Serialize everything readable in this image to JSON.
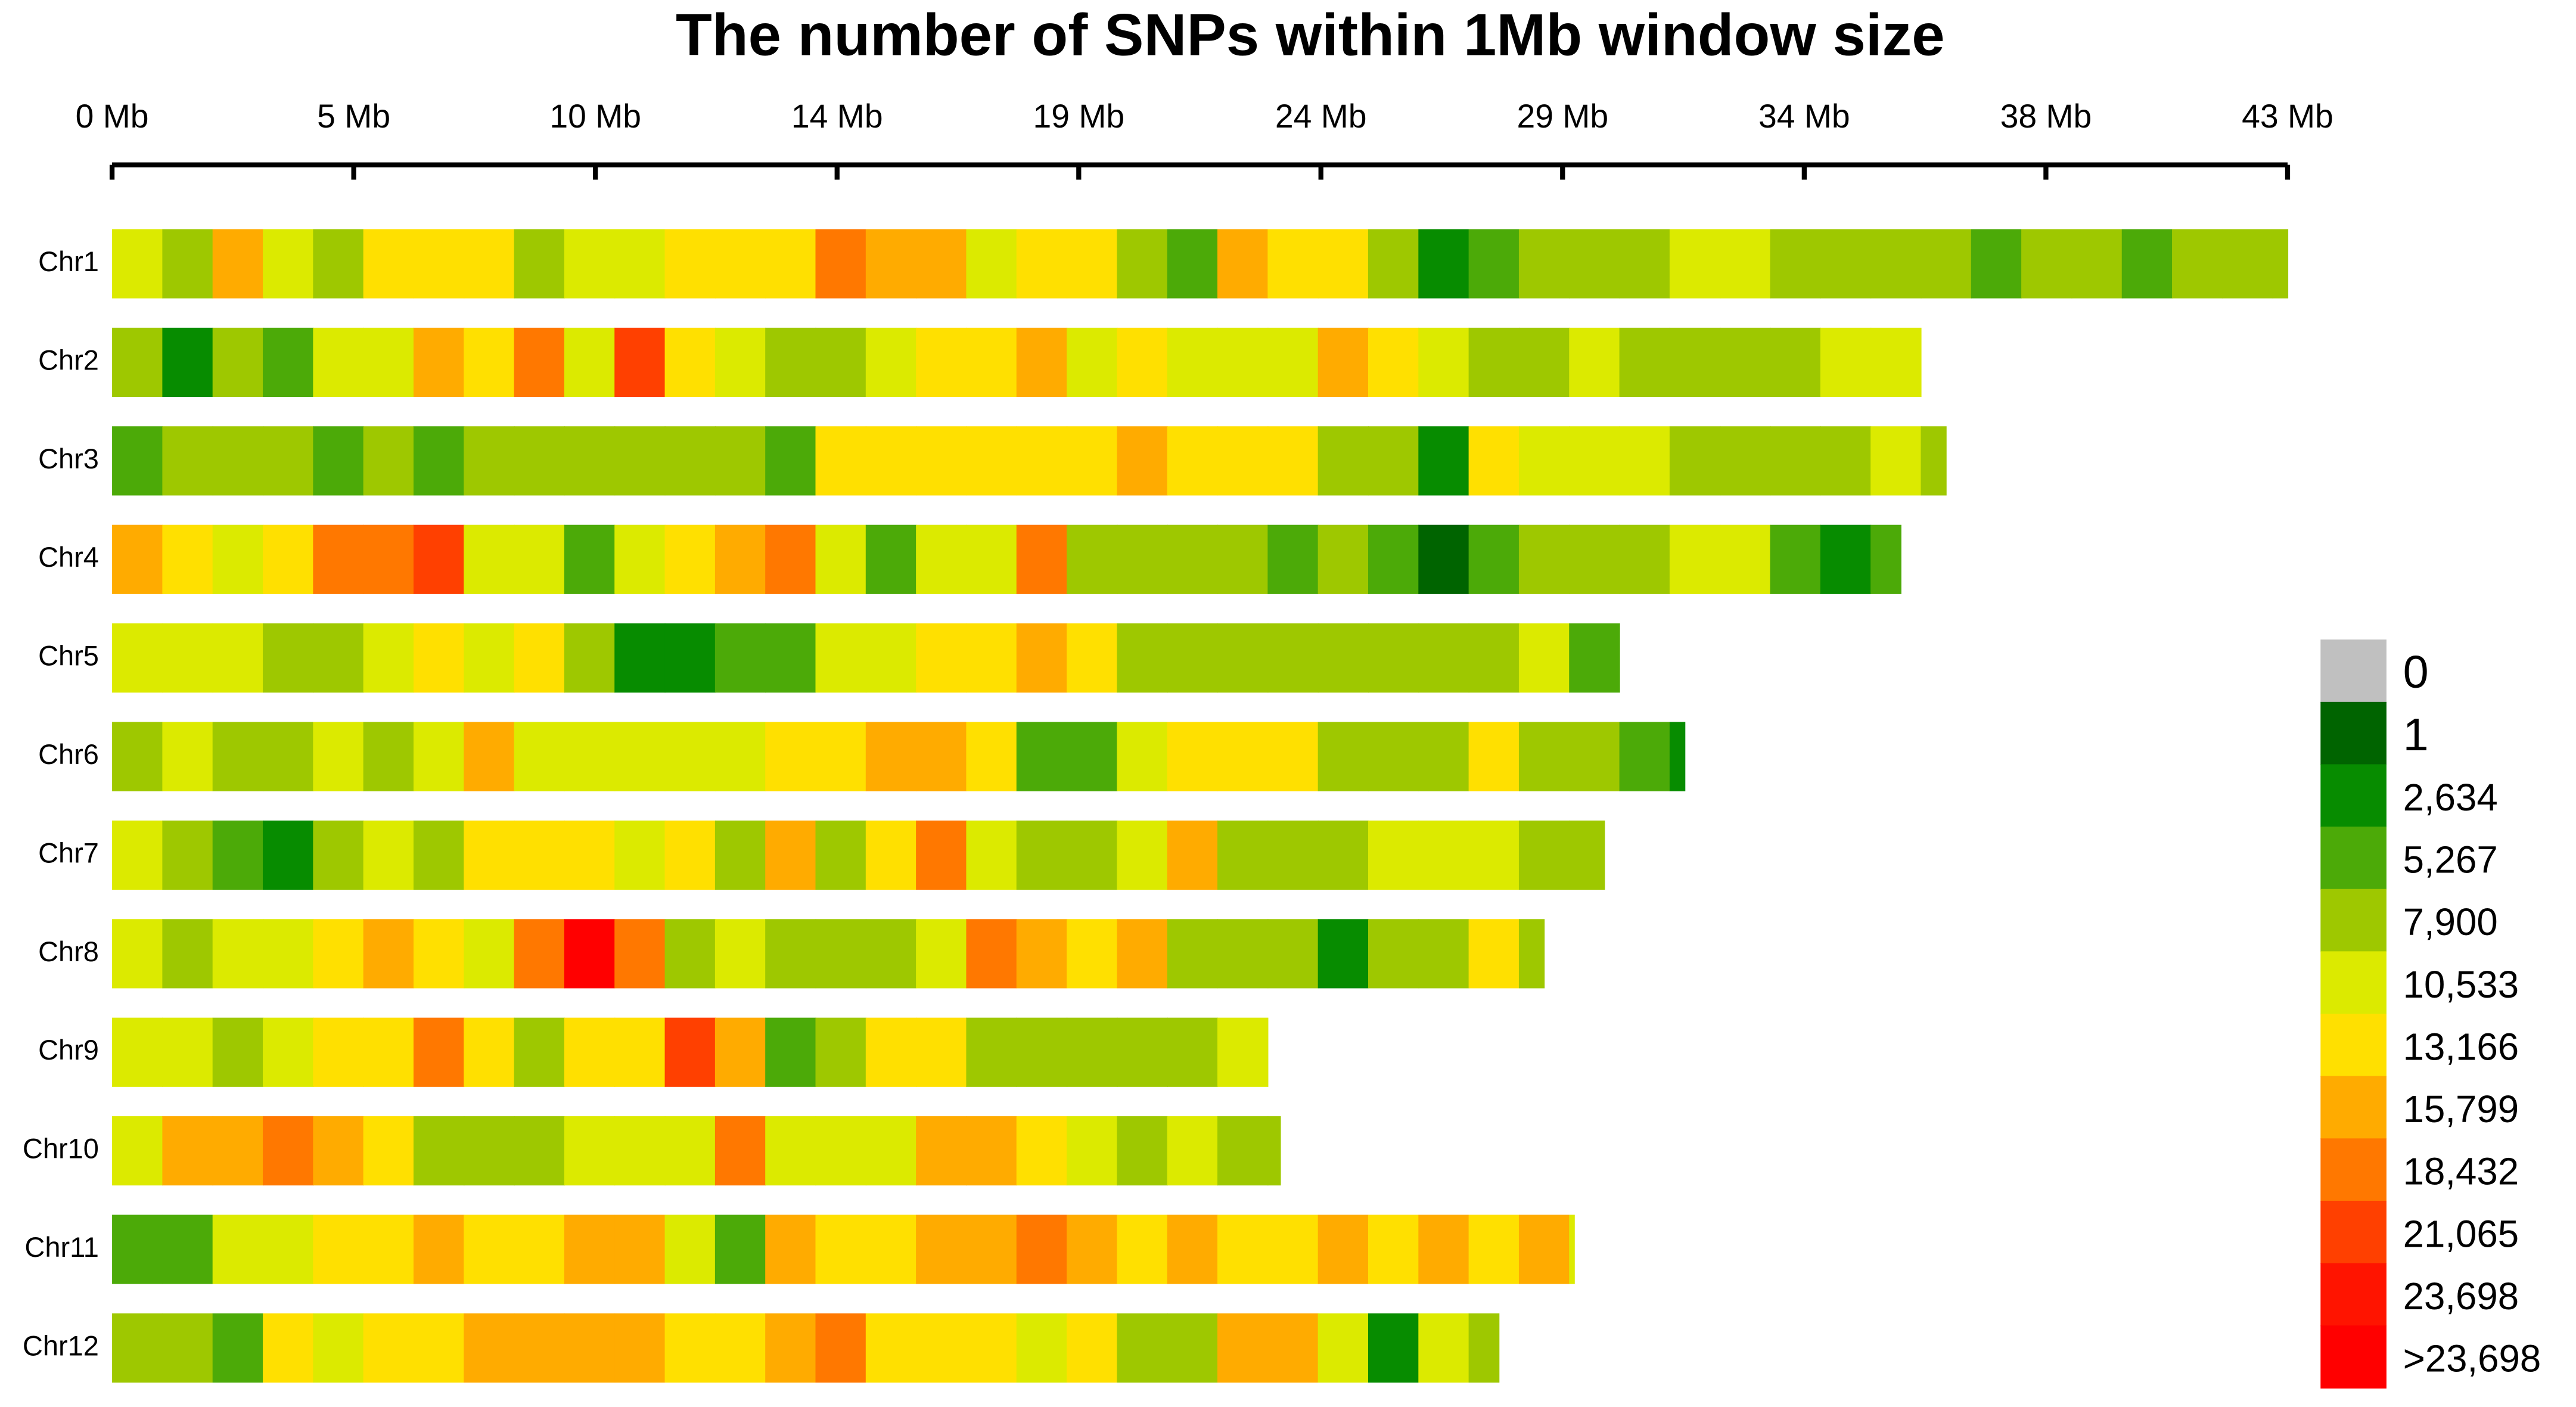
{
  "chart_data": {
    "type": "heatmap",
    "title": "The number of SNPs within 1Mb window size",
    "window": 1,
    "xlim": [
      0,
      43.3
    ],
    "xticks": [
      {
        "value": 0,
        "label": "0 Mb"
      },
      {
        "value": 4.81,
        "label": "5 Mb"
      },
      {
        "value": 9.62,
        "label": "10 Mb"
      },
      {
        "value": 14.43,
        "label": "14 Mb"
      },
      {
        "value": 19.24,
        "label": "19 Mb"
      },
      {
        "value": 24.06,
        "label": "24 Mb"
      },
      {
        "value": 28.87,
        "label": "29 Mb"
      },
      {
        "value": 33.68,
        "label": "34 Mb"
      },
      {
        "value": 38.49,
        "label": "38 Mb"
      },
      {
        "value": 43.3,
        "label": "43 Mb"
      }
    ],
    "rows": [
      {
        "name": "Chr1",
        "length": 43.3,
        "values": [
          11800,
          9000,
          17000,
          11800,
          9000,
          14500,
          14500,
          14500,
          9000,
          11800,
          11800,
          14500,
          14500,
          14500,
          19800,
          17000,
          17000,
          11800,
          14500,
          14500,
          9000,
          6500,
          17000,
          14500,
          14500,
          9000,
          4000,
          6500,
          9000,
          9000,
          9000,
          11800,
          11800,
          9000,
          9000,
          9000,
          9000,
          6500,
          9000,
          9000,
          6500,
          9000,
          9000,
          9000
        ]
      },
      {
        "name": "Chr2",
        "length": 36.0,
        "values": [
          9000,
          4000,
          9000,
          6500,
          11800,
          11800,
          17000,
          14500,
          19800,
          11800,
          22400,
          14500,
          11800,
          9000,
          9000,
          11800,
          14500,
          14500,
          17000,
          11800,
          14500,
          11800,
          11800,
          11800,
          17000,
          14500,
          11800,
          9000,
          9000,
          11800,
          9000,
          9000,
          9000,
          9000,
          11800,
          11800
        ]
      },
      {
        "name": "Chr3",
        "length": 36.5,
        "values": [
          6500,
          9000,
          9000,
          9000,
          6500,
          9000,
          6500,
          9000,
          9000,
          9000,
          9000,
          9000,
          9000,
          6500,
          14500,
          14500,
          14500,
          14500,
          14500,
          14500,
          17000,
          14500,
          14500,
          14500,
          9000,
          9000,
          4000,
          14500,
          11800,
          11800,
          11800,
          9000,
          9000,
          9000,
          9000,
          11800,
          9000
        ]
      },
      {
        "name": "Chr4",
        "length": 35.6,
        "values": [
          17000,
          14500,
          11800,
          14500,
          19800,
          19800,
          22400,
          11800,
          11800,
          6500,
          11800,
          14500,
          17000,
          19800,
          11800,
          6500,
          11800,
          11800,
          19800,
          9000,
          9000,
          9000,
          9000,
          6500,
          9000,
          6500,
          2000,
          6500,
          9000,
          9000,
          9000,
          11800,
          11800,
          6500,
          4000,
          6500
        ]
      },
      {
        "name": "Chr5",
        "length": 30.0,
        "values": [
          11800,
          11800,
          11800,
          9000,
          9000,
          11800,
          14500,
          11800,
          14500,
          9000,
          4000,
          4000,
          6500,
          6500,
          11800,
          11800,
          14500,
          14500,
          17000,
          14500,
          9000,
          9000,
          9000,
          9000,
          9000,
          9000,
          9000,
          9000,
          11800,
          6500
        ]
      },
      {
        "name": "Chr6",
        "length": 31.3,
        "values": [
          9000,
          11800,
          9000,
          9000,
          11800,
          9000,
          11800,
          17000,
          11800,
          11800,
          11800,
          11800,
          11800,
          14500,
          14500,
          17000,
          17000,
          14500,
          6500,
          6500,
          11800,
          14500,
          14500,
          14500,
          9000,
          9000,
          9000,
          14500,
          9000,
          9000,
          6500,
          4000
        ]
      },
      {
        "name": "Chr7",
        "length": 29.7,
        "values": [
          11800,
          9000,
          6500,
          4000,
          9000,
          11800,
          9000,
          14500,
          14500,
          14500,
          11800,
          14500,
          9000,
          17000,
          9000,
          14500,
          19800,
          11800,
          9000,
          9000,
          11800,
          17000,
          9000,
          9000,
          9000,
          11800,
          11800,
          11800,
          9000,
          9000
        ]
      },
      {
        "name": "Chr8",
        "length": 28.5,
        "values": [
          11800,
          9000,
          11800,
          11800,
          14500,
          17000,
          14500,
          11800,
          19800,
          24500,
          19800,
          9000,
          11800,
          9000,
          9000,
          9000,
          11800,
          19800,
          17000,
          14500,
          17000,
          9000,
          9000,
          9000,
          4000,
          9000,
          9000,
          14500,
          9000
        ]
      },
      {
        "name": "Chr9",
        "length": 23.0,
        "values": [
          11800,
          11800,
          9000,
          11800,
          14500,
          14500,
          19800,
          14500,
          9000,
          14500,
          14500,
          22400,
          17000,
          6500,
          9000,
          14500,
          14500,
          9000,
          9000,
          9000,
          9000,
          9000,
          11800
        ]
      },
      {
        "name": "Chr10",
        "length": 23.25,
        "values": [
          11800,
          17000,
          17000,
          19800,
          17000,
          14500,
          9000,
          9000,
          9000,
          11800,
          11800,
          11800,
          19800,
          11800,
          11800,
          11800,
          17000,
          17000,
          14500,
          11800,
          9000,
          11800,
          9000,
          9000
        ]
      },
      {
        "name": "Chr11",
        "length": 29.1,
        "values": [
          6500,
          6500,
          11800,
          11800,
          14500,
          14500,
          17000,
          14500,
          14500,
          17000,
          17000,
          11800,
          6500,
          17000,
          14500,
          14500,
          17000,
          17000,
          19800,
          17000,
          14500,
          17000,
          14500,
          14500,
          17000,
          14500,
          17000,
          14500,
          17000,
          11800
        ]
      },
      {
        "name": "Chr12",
        "length": 27.6,
        "values": [
          9000,
          9000,
          6500,
          14500,
          11800,
          14500,
          14500,
          17000,
          17000,
          17000,
          17000,
          14500,
          14500,
          17000,
          19800,
          14500,
          14500,
          14500,
          11800,
          14500,
          9000,
          9000,
          17000,
          17000,
          11800,
          4000,
          11800,
          9000
        ]
      }
    ],
    "legend": {
      "breaks": [
        0,
        1,
        {
          "value": 2634,
          "label": "2,634"
        },
        {
          "value": 5267,
          "label": "5,267"
        },
        {
          "value": 7900,
          "label": "7,900"
        },
        {
          "value": 10533,
          "label": "10,533"
        },
        {
          "value": 13166,
          "label": "13,166"
        },
        {
          "value": 15799,
          "label": "15,799"
        },
        {
          "value": 18432,
          "label": "18,432"
        },
        {
          "value": 21065,
          "label": "21,065"
        },
        {
          "value": 23698,
          "label": "23,698"
        }
      ],
      "over_label": ">23,698",
      "colors": [
        "#c0c0c0",
        "#006400",
        "#078c00",
        "#4caa08",
        "#9ec800",
        "#dcea00",
        "#ffe000",
        "#ffab00",
        "#ff7800",
        "#ff4000",
        "#ff1400",
        "#ff0000"
      ]
    }
  }
}
